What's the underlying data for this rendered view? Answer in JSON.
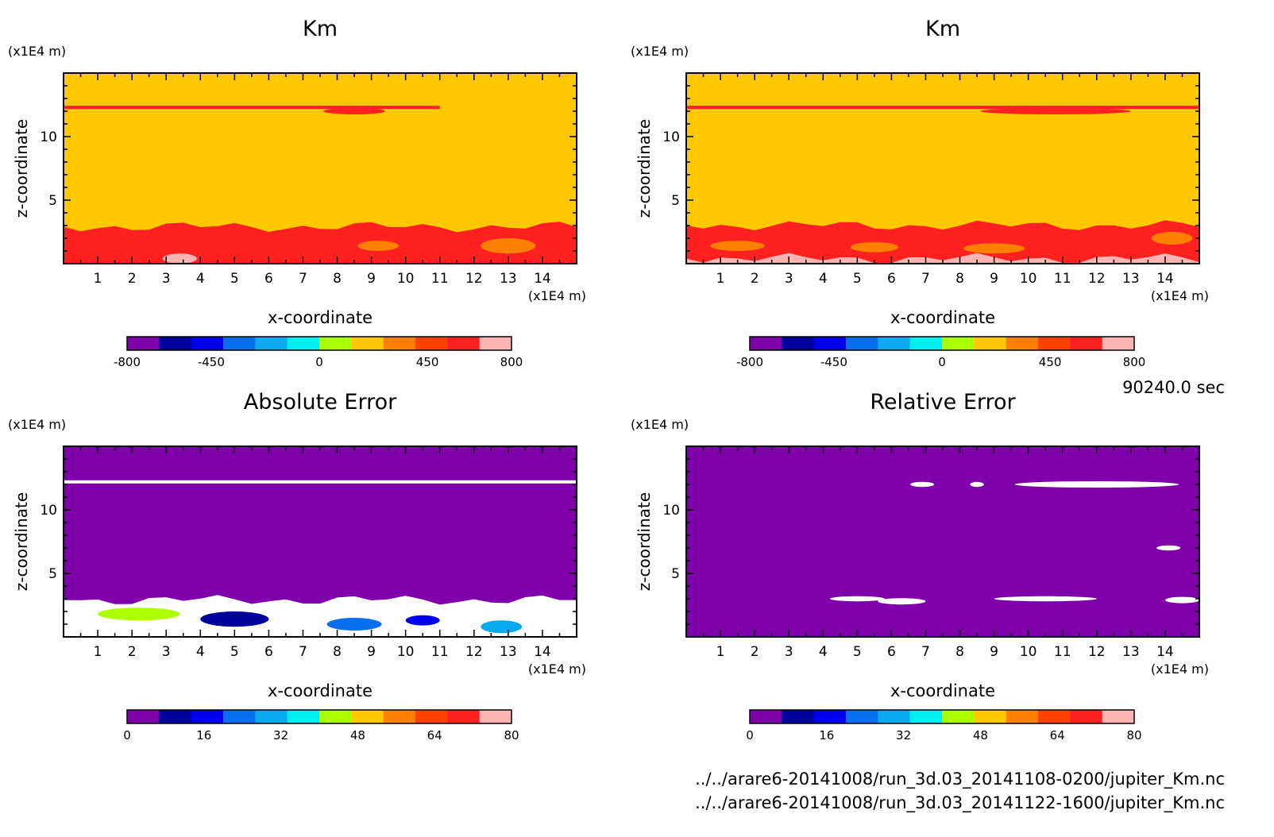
{
  "time_label": "90240.0 sec",
  "files": [
    "../../arare6-20141008/run_3d.03_20141108-0200/jupiter_Km.nc",
    "../../arare6-20141008/run_3d.03_20141122-1600/jupiter_Km.nc"
  ],
  "chart_data": [
    {
      "type": "heatmap",
      "title": "Km",
      "xlabel": "x-coordinate",
      "ylabel": "z-coordinate",
      "x_unit": "(x1E4 m)",
      "y_unit": "(x1E4 m)",
      "xlim": [
        0,
        15
      ],
      "ylim": [
        0,
        15
      ],
      "x_ticks": [
        1,
        2,
        3,
        4,
        5,
        6,
        7,
        8,
        9,
        10,
        11,
        12,
        13,
        14
      ],
      "y_ticks": [
        5,
        10
      ],
      "background_value": 150,
      "features": [
        {
          "kind": "band",
          "z": [
            0.0,
            2.9
          ],
          "value": 600
        },
        {
          "kind": "band",
          "z": [
            0.0,
            1.0
          ],
          "value": 650
        },
        {
          "kind": "line",
          "z": 12.3,
          "x": [
            0,
            11
          ],
          "value": 600
        },
        {
          "kind": "blob",
          "x": 8.5,
          "z": 12.0,
          "rx": 0.9,
          "rz": 0.25,
          "value": 650
        },
        {
          "kind": "blob",
          "x": 13.0,
          "z": 1.4,
          "rx": 0.8,
          "rz": 0.6,
          "value": 380
        },
        {
          "kind": "blob",
          "x": 9.2,
          "z": 1.4,
          "rx": 0.6,
          "rz": 0.4,
          "value": 380
        },
        {
          "kind": "blob",
          "x": 3.4,
          "z": 0.4,
          "rx": 0.5,
          "rz": 0.4,
          "value": 780
        }
      ],
      "colorbar": {
        "min": -800,
        "max": 800,
        "tick_labels": [
          "-800",
          "-450",
          "0",
          "450",
          "800"
        ],
        "tick_values": [
          -800,
          -450,
          0,
          450,
          800
        ]
      }
    },
    {
      "type": "heatmap",
      "title": "Km",
      "xlabel": "x-coordinate",
      "ylabel": "z-coordinate",
      "x_unit": "(x1E4 m)",
      "y_unit": "(x1E4 m)",
      "xlim": [
        0,
        15
      ],
      "ylim": [
        0,
        15
      ],
      "x_ticks": [
        1,
        2,
        3,
        4,
        5,
        6,
        7,
        8,
        9,
        10,
        11,
        12,
        13,
        14
      ],
      "y_ticks": [
        5,
        10
      ],
      "background_value": 150,
      "features": [
        {
          "kind": "band",
          "z": [
            0.0,
            3.0
          ],
          "value": 600
        },
        {
          "kind": "band",
          "z": [
            0.0,
            0.4
          ],
          "value": 780
        },
        {
          "kind": "line",
          "z": 12.3,
          "x": [
            0,
            15
          ],
          "value": 600
        },
        {
          "kind": "blob",
          "x": 10.8,
          "z": 12.0,
          "rx": 2.2,
          "rz": 0.25,
          "value": 650
        },
        {
          "kind": "blob",
          "x": 5.5,
          "z": 1.3,
          "rx": 0.7,
          "rz": 0.4,
          "value": 380
        },
        {
          "kind": "blob",
          "x": 9.0,
          "z": 1.2,
          "rx": 0.9,
          "rz": 0.4,
          "value": 380
        },
        {
          "kind": "blob",
          "x": 14.2,
          "z": 2.0,
          "rx": 0.6,
          "rz": 0.5,
          "value": 380
        },
        {
          "kind": "blob",
          "x": 1.5,
          "z": 1.4,
          "rx": 0.8,
          "rz": 0.4,
          "value": 380
        }
      ],
      "colorbar": {
        "min": -800,
        "max": 800,
        "tick_labels": [
          "-800",
          "-450",
          "0",
          "450",
          "800"
        ],
        "tick_values": [
          -800,
          -450,
          0,
          450,
          800
        ]
      }
    },
    {
      "type": "heatmap",
      "title": "Absolute Error",
      "xlabel": "x-coordinate",
      "ylabel": "z-coordinate",
      "x_unit": "(x1E4 m)",
      "y_unit": "(x1E4 m)",
      "xlim": [
        0,
        15
      ],
      "ylim": [
        0,
        15
      ],
      "x_ticks": [
        1,
        2,
        3,
        4,
        5,
        6,
        7,
        8,
        9,
        10,
        11,
        12,
        13,
        14
      ],
      "y_ticks": [
        5,
        10
      ],
      "background_value": 2,
      "features": [
        {
          "kind": "band",
          "z": [
            0.0,
            2.9
          ],
          "value": 100
        },
        {
          "kind": "line",
          "z": 12.2,
          "x": [
            0,
            15
          ],
          "value": 100
        },
        {
          "kind": "blob",
          "x": 5.0,
          "z": 1.4,
          "rx": 1.0,
          "rz": 0.6,
          "value": 12
        },
        {
          "kind": "blob",
          "x": 2.2,
          "z": 1.8,
          "rx": 1.2,
          "rz": 0.5,
          "value": 40
        },
        {
          "kind": "blob",
          "x": 8.5,
          "z": 1.0,
          "rx": 0.8,
          "rz": 0.5,
          "value": 25
        },
        {
          "kind": "blob",
          "x": 10.5,
          "z": 1.3,
          "rx": 0.5,
          "rz": 0.4,
          "value": 18
        },
        {
          "kind": "blob",
          "x": 12.8,
          "z": 0.8,
          "rx": 0.6,
          "rz": 0.5,
          "value": 30
        }
      ],
      "colorbar": {
        "min": 0,
        "max": 80,
        "tick_labels": [
          "0",
          "16",
          "32",
          "48",
          "64",
          "80"
        ],
        "tick_values": [
          0,
          16,
          32,
          48,
          64,
          80
        ]
      }
    },
    {
      "type": "heatmap",
      "title": "Relative Error",
      "xlabel": "x-coordinate",
      "ylabel": "z-coordinate",
      "x_unit": "(x1E4 m)",
      "y_unit": "(x1E4 m)",
      "xlim": [
        0,
        15
      ],
      "ylim": [
        0,
        15
      ],
      "x_ticks": [
        1,
        2,
        3,
        4,
        5,
        6,
        7,
        8,
        9,
        10,
        11,
        12,
        13,
        14
      ],
      "y_ticks": [
        5,
        10
      ],
      "background_value": 2,
      "features": [
        {
          "kind": "blob",
          "x": 6.9,
          "z": 12.0,
          "rx": 0.35,
          "rz": 0.2,
          "value": 100
        },
        {
          "kind": "blob",
          "x": 8.5,
          "z": 12.0,
          "rx": 0.2,
          "rz": 0.2,
          "value": 100
        },
        {
          "kind": "blob",
          "x": 12.0,
          "z": 12.0,
          "rx": 2.4,
          "rz": 0.25,
          "value": 100
        },
        {
          "kind": "blob",
          "x": 14.1,
          "z": 7.0,
          "rx": 0.35,
          "rz": 0.2,
          "value": 100
        },
        {
          "kind": "blob",
          "x": 5.0,
          "z": 3.0,
          "rx": 0.8,
          "rz": 0.2,
          "value": 100
        },
        {
          "kind": "blob",
          "x": 6.3,
          "z": 2.8,
          "rx": 0.7,
          "rz": 0.25,
          "value": 100
        },
        {
          "kind": "blob",
          "x": 10.5,
          "z": 3.0,
          "rx": 1.5,
          "rz": 0.2,
          "value": 100
        },
        {
          "kind": "blob",
          "x": 14.5,
          "z": 2.9,
          "rx": 0.5,
          "rz": 0.25,
          "value": 100
        }
      ],
      "colorbar": {
        "min": 0,
        "max": 80,
        "tick_labels": [
          "0",
          "16",
          "32",
          "48",
          "64",
          "80"
        ],
        "tick_values": [
          0,
          16,
          32,
          48,
          64,
          80
        ]
      }
    }
  ]
}
